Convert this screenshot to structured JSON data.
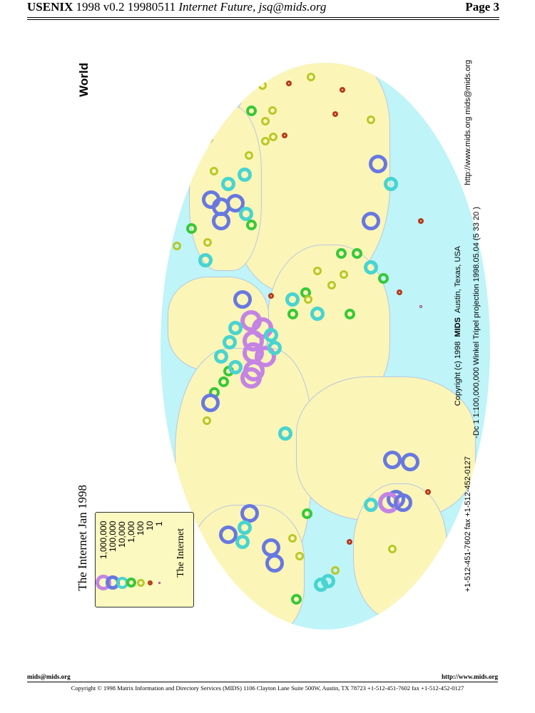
{
  "header": {
    "conf": "USENIX",
    "version": "1998 v0.2 19980511",
    "title": "Internet Future, jsq@mids.org",
    "page": "Page 3"
  },
  "map": {
    "heading": "World",
    "title": "The Internet  Jan 1998",
    "contact": "http://www.mids.org mids@mids.org",
    "copyright_pre": "Copyright (c) 1998",
    "copyright_brand": "MIDS",
    "copyright_post": "Austin, Texas, USA",
    "projection": "-Dc 1 1:100,000,000 Winkel Tripel projection 1998.05.04 (5 33 20 )",
    "phone": "+1-512-451-7602 fax +1-512-452-0127",
    "legend": {
      "items": [
        {
          "label": "1,000,000",
          "color": "#c484e4"
        },
        {
          "label": "100,000",
          "color": "#6878e0"
        },
        {
          "label": "10,000",
          "color": "#48d4d0"
        },
        {
          "label": "1,000",
          "color": "#38c838"
        },
        {
          "label": "100",
          "color": "#b8c828"
        },
        {
          "label": "10",
          "color": "#b83818"
        },
        {
          "label": "1",
          "color": "#a82888"
        }
      ],
      "caption": "The Internet"
    }
  },
  "footer": {
    "left": "mids@mids.org",
    "right": "http://www.mids.org",
    "copyright": "Copyright © 1998 Matrix Information and Directory Services (MIDS) 1106 Clayton Lane Suite 500W, Austin, TX 78723 +1-512-451-7602 fax +1-512-452-0127"
  }
}
